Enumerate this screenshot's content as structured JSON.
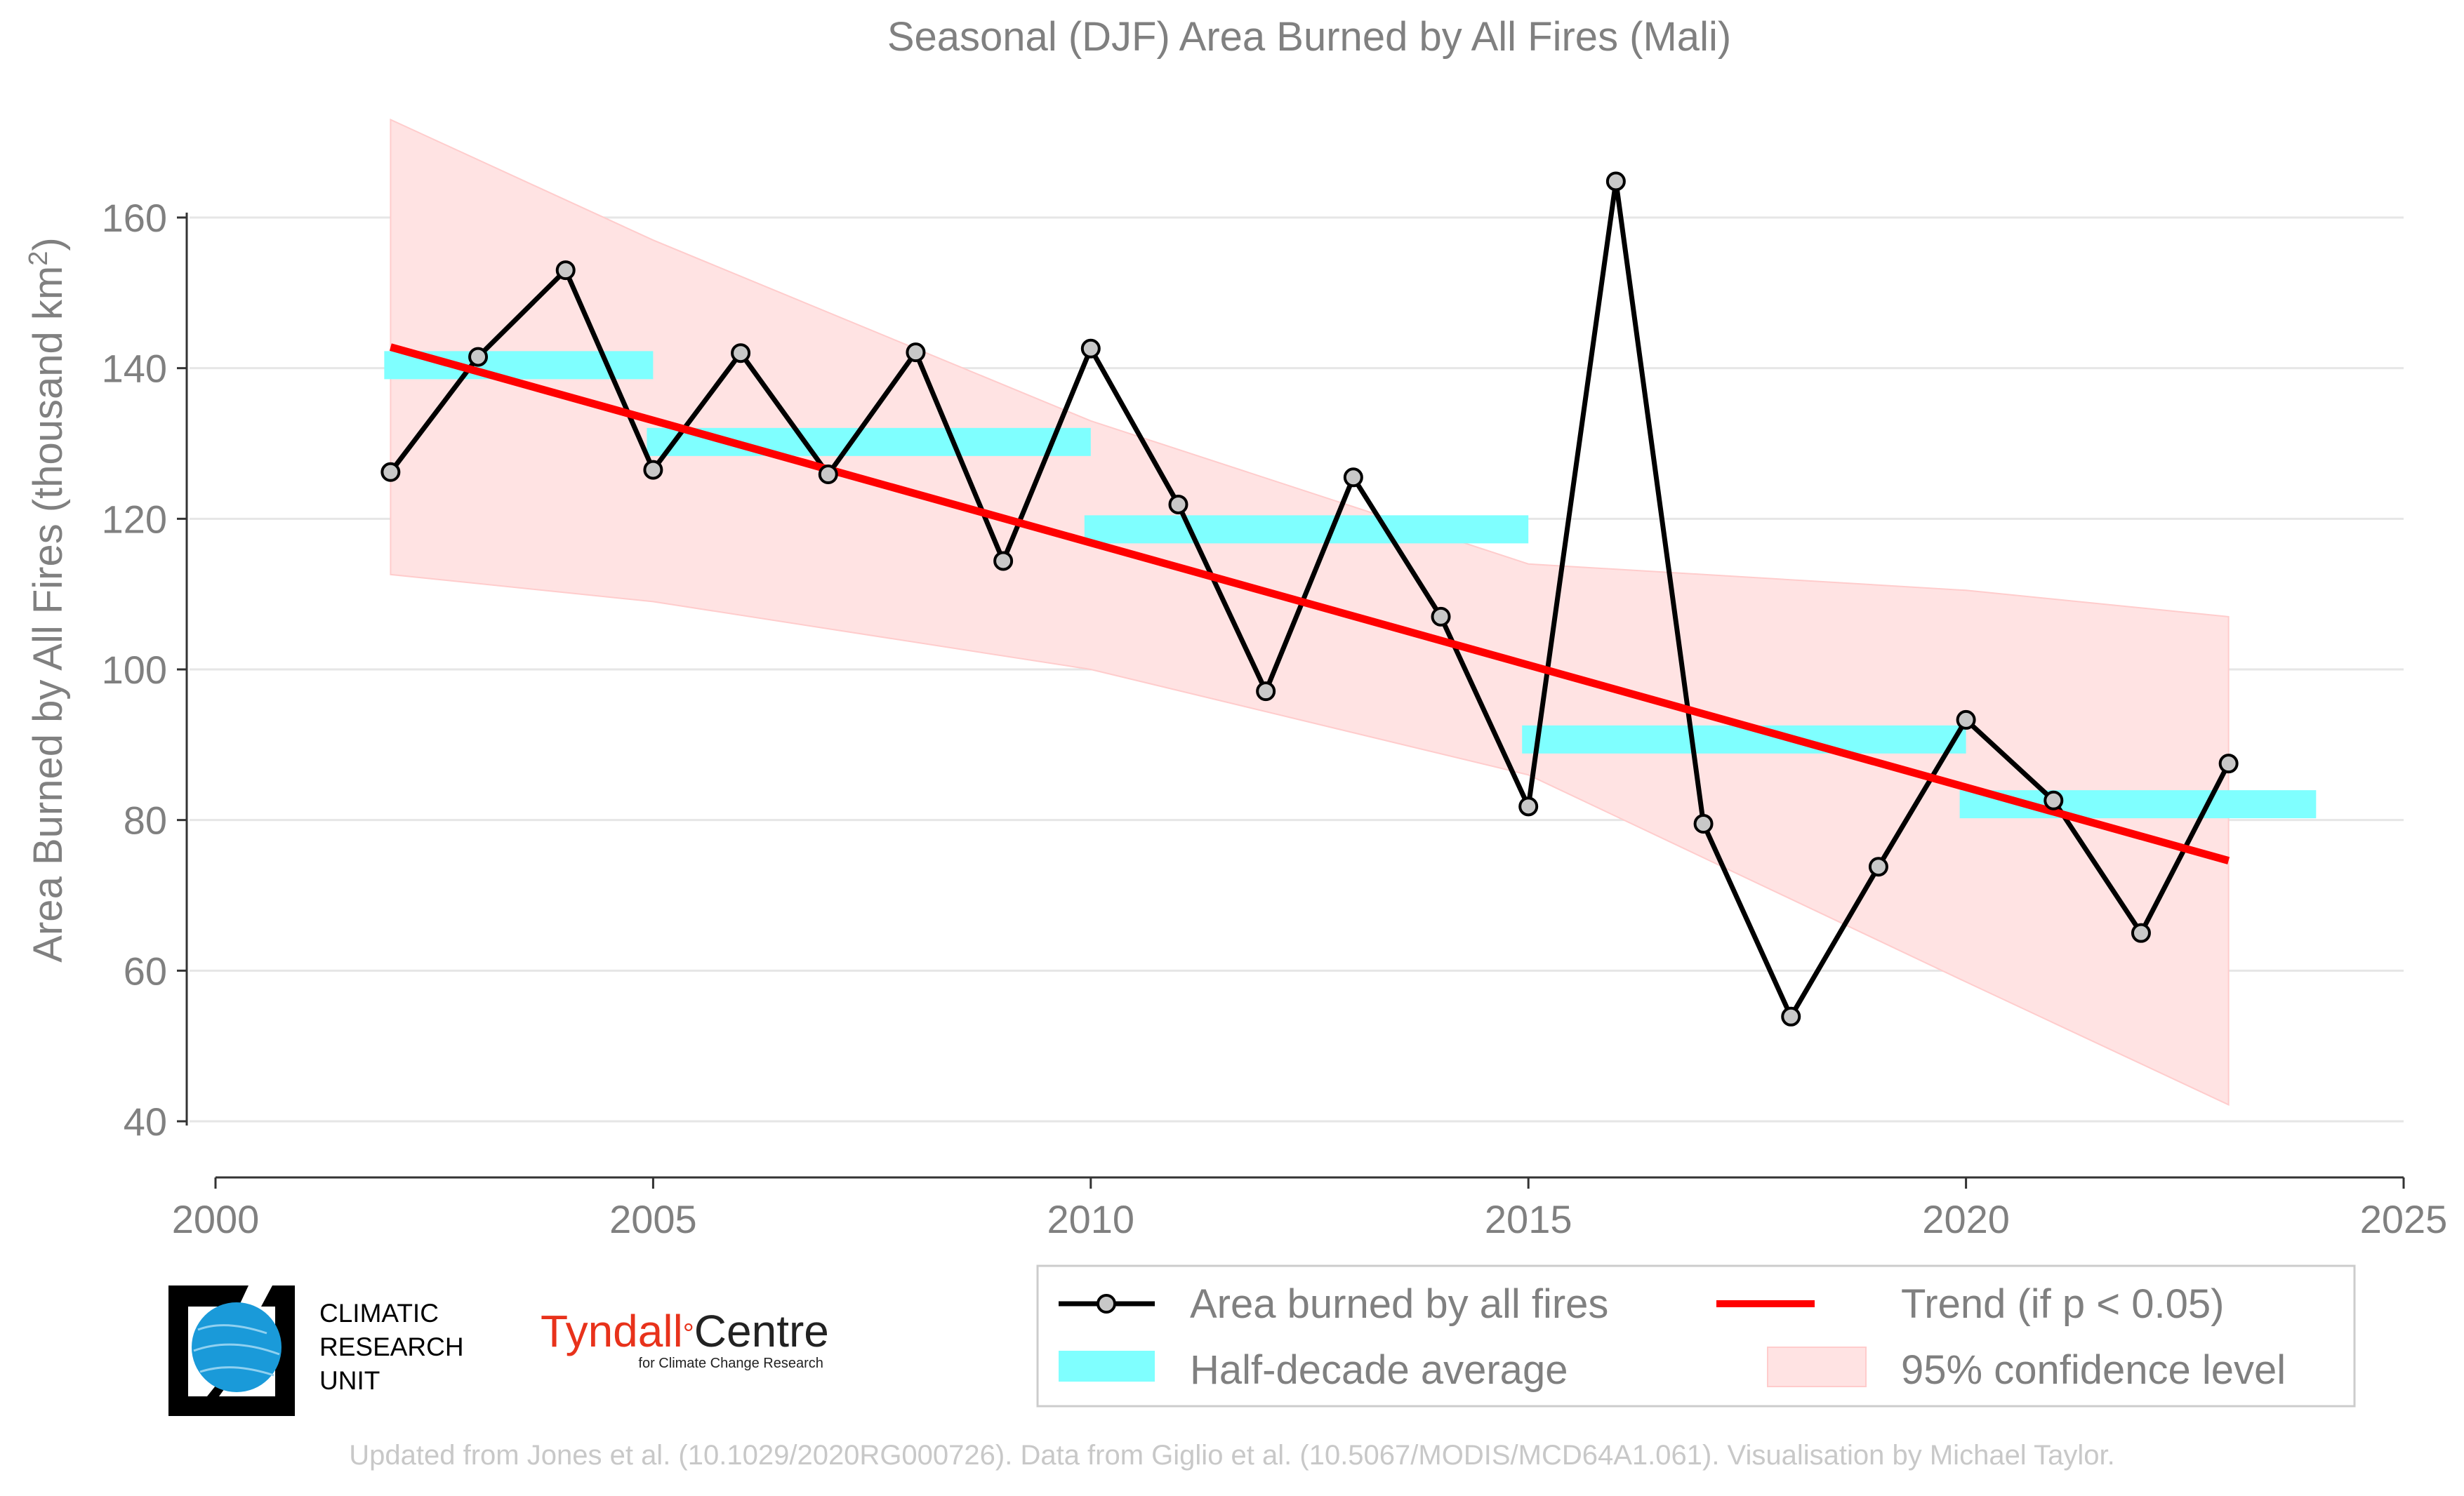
{
  "chart_data": {
    "type": "line",
    "title": "Seasonal (DJF) Area Burned by All Fires (Mali)",
    "ylabel_main": "Area Burned by All Fires (thousand km",
    "ylabel_sup": "2",
    "ylabel_close": ")",
    "xlim": [
      2000,
      2025
    ],
    "ylim": [
      33,
      176
    ],
    "x_ticks": [
      2000,
      2005,
      2010,
      2015,
      2020,
      2025
    ],
    "y_ticks": [
      40,
      60,
      80,
      100,
      120,
      140,
      160
    ],
    "grid": "horizontal",
    "legend_position": "bottom-right",
    "series": [
      {
        "name": "Area burned by all fires",
        "color": "#000000",
        "x": [
          2002,
          2003,
          2004,
          2005,
          2006,
          2007,
          2008,
          2009,
          2010,
          2011,
          2012,
          2013,
          2014,
          2015,
          2016,
          2017,
          2018,
          2019,
          2020,
          2021,
          2022,
          2023
        ],
        "y": [
          126.2,
          141.5,
          153.0,
          126.5,
          142.0,
          125.9,
          142.1,
          114.4,
          142.6,
          121.9,
          97.1,
          125.5,
          107.0,
          81.8,
          164.8,
          79.5,
          53.9,
          73.8,
          93.3,
          82.6,
          65.0,
          87.5
        ]
      }
    ],
    "half_decade_average": {
      "name": "Half-decade average",
      "color": "#7fffff",
      "segments": [
        {
          "x_start": 2002,
          "x_end": 2005,
          "value": 140.4
        },
        {
          "x_start": 2005,
          "x_end": 2010,
          "value": 130.2
        },
        {
          "x_start": 2010,
          "x_end": 2015,
          "value": 118.6
        },
        {
          "x_start": 2015,
          "x_end": 2020,
          "value": 90.7
        },
        {
          "x_start": 2020,
          "x_end": 2024,
          "value": 82.1
        }
      ]
    },
    "trend": {
      "name": "Trend (if p < 0.05)",
      "color": "#ff0000",
      "x": [
        2002,
        2023
      ],
      "y": [
        142.8,
        74.6
      ]
    },
    "confidence": {
      "name": "95% confidence level",
      "color": "#ffe3e3",
      "x": [
        2002,
        2005,
        2010,
        2015,
        2020,
        2023
      ],
      "upper": [
        173.0,
        157.0,
        133.0,
        114.0,
        110.5,
        107.0
      ],
      "lower": [
        112.6,
        109.0,
        100.0,
        86.0,
        58.5,
        42.2
      ]
    },
    "legend": [
      {
        "label": "Area burned by all fires",
        "kind": "line-marker",
        "color": "#000000"
      },
      {
        "label": "Trend (if p < 0.05)",
        "kind": "line",
        "color": "#ff0000"
      },
      {
        "label": "Half-decade average",
        "kind": "band",
        "color": "#7fffff"
      },
      {
        "label": "95% confidence level",
        "kind": "patch",
        "color": "#ffe3e3"
      }
    ]
  },
  "logos": {
    "cru_line1": "CLIMATIC",
    "cru_line2": "RESEARCH",
    "cru_line3": "UNIT",
    "tyndall_part1": "Tyndall",
    "tyndall_degree": "°",
    "tyndall_part2": "Centre",
    "tyndall_sub": "for Climate Change Research"
  },
  "credits": "Updated from Jones et al. (10.1029/2020RG000726). Data from Giglio et al. (10.5067/MODIS/MCD64A1.061). Visualisation by Michael Taylor.",
  "colors": {
    "text_gray": "#808080",
    "grid": "#e6e6e6",
    "axis": "#333333"
  }
}
